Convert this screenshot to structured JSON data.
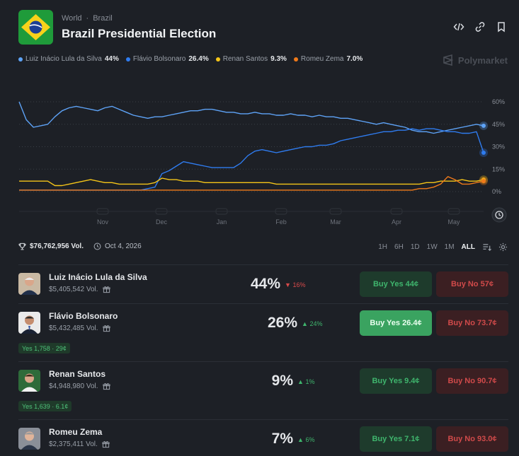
{
  "breadcrumb": {
    "world": "World",
    "country": "Brazil"
  },
  "title": "Brazil Presidential Election",
  "brand": "Polymarket",
  "legend": [
    {
      "name": "Luiz Inácio Lula da Silva",
      "pct": "44%",
      "color": "#5ea3f7"
    },
    {
      "name": "Flávio Bolsonaro",
      "pct": "26.4%",
      "color": "#2f7cf0"
    },
    {
      "name": "Renan Santos",
      "pct": "9.3%",
      "color": "#f5c518"
    },
    {
      "name": "Romeu Zema",
      "pct": "7.0%",
      "color": "#f07a1a"
    }
  ],
  "stats": {
    "volume": "$76,762,956 Vol.",
    "date": "Oct 4, 2026"
  },
  "ranges": [
    "1H",
    "6H",
    "1D",
    "1W",
    "1M",
    "ALL"
  ],
  "active_range": "ALL",
  "chart_data": {
    "type": "line",
    "x_ticks": [
      "Nov",
      "Dec",
      "Jan",
      "Feb",
      "Mar",
      "Apr",
      "May"
    ],
    "y_ticks": [
      "60%",
      "45%",
      "30%",
      "15%",
      "0%"
    ],
    "ylim": [
      0,
      60
    ],
    "x": [
      0,
      0.1,
      0.2,
      0.3,
      0.4,
      0.5,
      0.6,
      0.7,
      0.8,
      0.9,
      1.0,
      1.1,
      1.2,
      1.3,
      1.4,
      1.5,
      1.6,
      1.7,
      1.8,
      1.9,
      2.0,
      2.1,
      2.2,
      2.3,
      2.4,
      2.5,
      2.6,
      2.7,
      2.8,
      2.9,
      3.0,
      3.1,
      3.2,
      3.3,
      3.4,
      3.5,
      3.6,
      3.7,
      3.8,
      3.9,
      4.0,
      4.1,
      4.2,
      4.3,
      4.4,
      4.5,
      4.6,
      4.7,
      4.8,
      4.9,
      5.0,
      5.1,
      5.2,
      5.3,
      5.4,
      5.5,
      5.6,
      5.7,
      5.8,
      5.9,
      6.0,
      6.1,
      6.2,
      6.3,
      6.4,
      6.5
    ],
    "series": [
      {
        "name": "Luiz Inácio Lula da Silva",
        "color": "#5ea3f7",
        "values": [
          60,
          48,
          43,
          44,
          45,
          50,
          54,
          56,
          57,
          56,
          55,
          54,
          56,
          57,
          55,
          53,
          51,
          50,
          49,
          50,
          50,
          51,
          52,
          53,
          54,
          54,
          55,
          55,
          54,
          53,
          53,
          52,
          52,
          53,
          52,
          52,
          51,
          51,
          52,
          51,
          51,
          50,
          51,
          50,
          50,
          49,
          49,
          48,
          47,
          46,
          45,
          46,
          45,
          44,
          43,
          41,
          40,
          40,
          39,
          40,
          41,
          42,
          43,
          44,
          45,
          44
        ]
      },
      {
        "name": "Flávio Bolsonaro",
        "color": "#2f7cf0",
        "values": [
          1,
          1,
          1,
          1,
          1,
          1,
          1,
          1,
          1,
          1,
          1,
          1,
          1,
          1,
          1,
          1,
          1,
          1,
          2,
          3,
          12,
          14,
          17,
          20,
          19,
          18,
          17,
          16,
          16,
          16,
          16,
          19,
          24,
          27,
          28,
          27,
          26,
          27,
          28,
          29,
          30,
          30,
          31,
          31,
          32,
          34,
          35,
          36,
          37,
          38,
          39,
          40,
          40,
          41,
          41,
          42,
          41,
          42,
          42,
          41,
          40,
          40,
          39,
          39,
          40,
          26
        ]
      },
      {
        "name": "Renan Santos",
        "color": "#f5c518",
        "values": [
          7,
          7,
          7,
          7,
          7,
          4,
          4,
          5,
          6,
          7,
          8,
          7,
          6,
          6,
          5,
          5,
          5,
          5,
          5,
          6,
          9,
          8,
          8,
          7,
          7,
          7,
          6,
          6,
          6,
          6,
          6,
          6,
          6,
          6,
          6,
          6,
          5,
          5,
          5,
          5,
          5,
          5,
          5,
          5,
          5,
          5,
          5,
          5,
          5,
          5,
          5,
          5,
          5,
          5,
          5,
          5,
          5,
          6,
          6,
          7,
          7,
          7,
          8,
          7,
          7,
          8
        ]
      },
      {
        "name": "Romeu Zema",
        "color": "#f07a1a",
        "values": [
          1,
          1,
          1,
          1,
          1,
          1,
          1,
          1,
          1,
          1,
          1,
          1,
          1,
          1,
          1,
          1,
          1,
          1,
          1,
          1,
          1,
          1,
          1,
          1,
          1,
          1,
          1,
          1,
          1,
          1,
          1,
          1,
          1,
          1,
          1,
          1,
          1,
          1,
          1,
          1,
          1,
          1,
          1,
          1,
          1,
          1,
          1,
          1,
          1,
          1,
          1,
          1,
          1,
          1,
          1,
          1,
          2,
          2,
          3,
          5,
          10,
          8,
          5,
          5,
          6,
          7
        ]
      }
    ]
  },
  "candidates": [
    {
      "name": "Luiz Inácio Lula da Silva",
      "vol": "$5,405,542 Vol.",
      "pct": "44%",
      "change": "16%",
      "direction": "down",
      "buy_yes": "Buy Yes 44¢",
      "buy_no": "Buy No 57¢",
      "tag": ""
    },
    {
      "name": "Flávio Bolsonaro",
      "vol": "$5,432,485 Vol.",
      "pct": "26%",
      "change": "24%",
      "direction": "up",
      "buy_yes": "Buy Yes 26.4¢",
      "buy_no": "Buy No 73.7¢",
      "tag": "Yes 1,758 · 29¢"
    },
    {
      "name": "Renan Santos",
      "vol": "$4,948,980 Vol.",
      "pct": "9%",
      "change": "1%",
      "direction": "up",
      "buy_yes": "Buy Yes 9.4¢",
      "buy_no": "Buy No 90.7¢",
      "tag": "Yes 1,639 · 6.1¢"
    },
    {
      "name": "Romeu Zema",
      "vol": "$2,375,411 Vol.",
      "pct": "7%",
      "change": "6%",
      "direction": "up",
      "buy_yes": "Buy Yes 7.1¢",
      "buy_no": "Buy No 93.0¢",
      "tag": ""
    }
  ]
}
